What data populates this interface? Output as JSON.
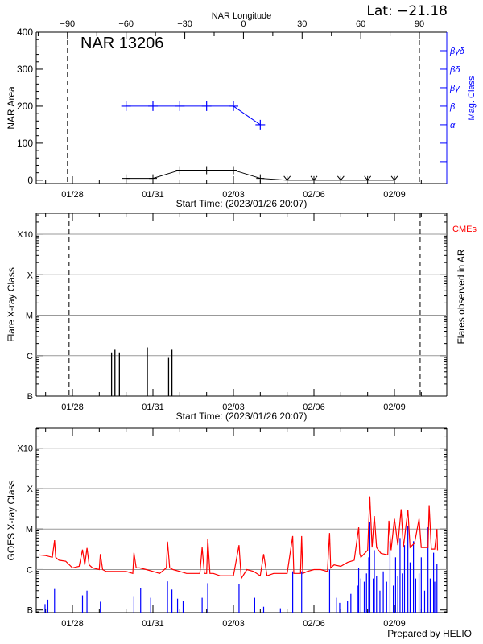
{
  "header": {
    "lat_label": "Lat: −21.18"
  },
  "footer": {
    "credit": "Prepared by HELIO"
  },
  "colors": {
    "axis": "#000000",
    "mag_class": "#0000ff",
    "goes": "#ff0000",
    "other_flares": "#0000ff",
    "cme": "#ff0000",
    "grid": "#999999"
  },
  "chart_data": [
    {
      "type": "line",
      "title": "NAR 13206",
      "xlabel": "Start Time: (2023/01/26 20:07)",
      "x_ticks": [
        "01/28",
        "01/31",
        "02/03",
        "02/06",
        "02/09"
      ],
      "xlim": [
        "01/26 15:36",
        "02/10 22:48"
      ],
      "ylabel": "NAR Area",
      "ylim": [
        -9,
        400
      ],
      "y_ticks": [
        0,
        100,
        200,
        300,
        400
      ],
      "top_axis": {
        "label": "NAR Longitude",
        "ticks": [
          -90,
          -60,
          -30,
          0,
          30,
          60,
          90
        ],
        "range": [
          -106,
          104
        ]
      },
      "limb_longitudes": [
        -90,
        90
      ],
      "right_axis": {
        "label": "Mag. Class",
        "classes": [
          {
            "label": "α",
            "value": 150
          },
          {
            "label": "β",
            "value": 200
          },
          {
            "label": "βγ",
            "value": 250
          },
          {
            "label": "βδ",
            "value": 300
          },
          {
            "label": "βγδ",
            "value": 350
          }
        ],
        "unlabeled_ticks": [
          50,
          100
        ]
      },
      "area_series": {
        "x": [
          "01/30 00:00",
          "01/31 00:00",
          "02/01 00:00",
          "02/02 00:00",
          "02/03 00:00",
          "02/04 00:00",
          "02/05 00:00",
          "02/06 00:00",
          "02/07 00:00",
          "02/08 00:00",
          "02/09 00:00"
        ],
        "y": [
          5,
          5,
          27,
          27,
          27,
          5,
          0,
          0,
          0,
          0,
          0
        ]
      },
      "mag_series": {
        "x": [
          "01/30 00:00",
          "01/31 00:00",
          "02/01 00:00",
          "02/02 00:00",
          "02/03 00:00",
          "02/04 00:00"
        ],
        "y": [
          "β",
          "β",
          "β",
          "β",
          "β",
          "α"
        ]
      }
    },
    {
      "type": "bar",
      "xlabel": "Start Time: (2023/01/26 20:07)",
      "x_ticks": [
        "01/28",
        "01/31",
        "02/03",
        "02/06",
        "02/09"
      ],
      "xlim": [
        "01/26 15:36",
        "02/10 22:48"
      ],
      "ylabel": "Flare X-ray Class",
      "y_scale": "log",
      "y_ticks": [
        "B",
        "C",
        "M",
        "X",
        "X10"
      ],
      "ylim": [
        "B1",
        "X33"
      ],
      "grid": true,
      "right_label": "Flares observed in AR",
      "cme_label": "CMEs",
      "limb_dates": [
        "01/27 21:00",
        "02/09 23:00"
      ],
      "flares": [
        {
          "time": "01/29 11:00",
          "class": "C1.2"
        },
        {
          "time": "01/29 14:00",
          "class": "C1.4"
        },
        {
          "time": "01/29 18:00",
          "class": "C1.2"
        },
        {
          "time": "01/30 19:00",
          "class": "C1.6"
        },
        {
          "time": "01/31 14:00",
          "class": "B8.8"
        },
        {
          "time": "01/31 17:00",
          "class": "C1.4"
        }
      ]
    },
    {
      "type": "line",
      "xlabel": "",
      "x_ticks": [
        "01/28",
        "01/31",
        "02/03",
        "02/06",
        "02/09"
      ],
      "xlim": [
        "01/26 15:36",
        "02/10 22:48"
      ],
      "ylabel": "GOES X-ray Class",
      "y_scale": "log",
      "y_ticks": [
        "B",
        "C",
        "M",
        "X",
        "X10"
      ],
      "ylim": [
        "B0.86",
        "X31"
      ],
      "grid": true,
      "goes_flux": [
        [
          "01/26 18:00",
          "C2.3"
        ],
        [
          "01/27 00:00",
          "C2.2"
        ],
        [
          "01/27 06:00",
          "C2.0"
        ],
        [
          "01/27 08:00",
          "C5.3"
        ],
        [
          "01/27 09:00",
          "C2.0"
        ],
        [
          "01/27 12:00",
          "C1.7"
        ],
        [
          "01/27 18:00",
          "C1.6"
        ],
        [
          "01/28 00:00",
          "C1.1"
        ],
        [
          "01/28 06:00",
          "C1.2"
        ],
        [
          "01/28 09:00",
          "C3.1"
        ],
        [
          "01/28 11:00",
          "C1.3"
        ],
        [
          "01/28 13:00",
          "C3.4"
        ],
        [
          "01/28 15:00",
          "C1.3"
        ],
        [
          "01/28 18:00",
          "C1.1"
        ],
        [
          "01/29 00:00",
          "C1.0"
        ],
        [
          "01/29 01:00",
          "C2.4"
        ],
        [
          "01/29 03:00",
          "C1.0"
        ],
        [
          "01/29 06:00",
          "C0.9"
        ],
        [
          "01/29 12:00",
          "C0.9"
        ],
        [
          "01/29 18:00",
          "C0.9"
        ],
        [
          "01/30 00:00",
          "C0.9"
        ],
        [
          "01/30 06:00",
          "C0.8"
        ],
        [
          "01/30 07:00",
          "C2.6"
        ],
        [
          "01/30 09:00",
          "C1.1"
        ],
        [
          "01/30 12:00",
          "C1.1"
        ],
        [
          "01/30 18:00",
          "C1.0"
        ],
        [
          "01/31 00:00",
          "C0.9"
        ],
        [
          "01/31 06:00",
          "C0.8"
        ],
        [
          "01/31 12:00",
          "C1.1"
        ],
        [
          "01/31 13:00",
          "C4.9"
        ],
        [
          "01/31 15:00",
          "C1.1"
        ],
        [
          "01/31 18:00",
          "C1.0"
        ],
        [
          "02/01 00:00",
          "C0.9"
        ],
        [
          "02/01 06:00",
          "C0.8"
        ],
        [
          "02/01 12:00",
          "C0.8"
        ],
        [
          "02/01 18:00",
          "C0.8"
        ],
        [
          "02/01 20:00",
          "C3.5"
        ],
        [
          "02/01 22:00",
          "C0.8"
        ],
        [
          "02/02 00:00",
          "C0.8"
        ],
        [
          "02/02 01:00",
          "C5.8"
        ],
        [
          "02/02 03:00",
          "C0.8"
        ],
        [
          "02/02 06:00",
          "C0.8"
        ],
        [
          "02/02 12:00",
          "C0.7"
        ],
        [
          "02/02 18:00",
          "C0.7"
        ],
        [
          "02/03 00:00",
          "C0.7"
        ],
        [
          "02/03 05:00",
          "C4.0"
        ],
        [
          "02/03 07:00",
          "C0.6"
        ],
        [
          "02/03 12:00",
          "C1.0"
        ],
        [
          "02/03 18:00",
          "C0.9"
        ],
        [
          "02/04 00:00",
          "C0.7"
        ],
        [
          "02/04 03:00",
          "C2.4"
        ],
        [
          "02/04 06:00",
          "C0.7"
        ],
        [
          "02/04 12:00",
          "C0.8"
        ],
        [
          "02/04 18:00",
          "C0.8"
        ],
        [
          "02/05 00:00",
          "C0.8"
        ],
        [
          "02/05 05:00",
          "C6.7"
        ],
        [
          "02/05 06:00",
          "C0.8"
        ],
        [
          "02/05 12:00",
          "C0.8"
        ],
        [
          "02/05 13:00",
          "C6.7"
        ],
        [
          "02/05 14:00",
          "C0.8"
        ],
        [
          "02/05 18:00",
          "C0.9"
        ],
        [
          "02/06 00:00",
          "C1.0"
        ],
        [
          "02/06 06:00",
          "C1.0"
        ],
        [
          "02/06 12:00",
          "C0.9"
        ],
        [
          "02/06 14:00",
          "C8.0"
        ],
        [
          "02/06 15:00",
          "C1.1"
        ],
        [
          "02/06 18:00",
          "C1.3"
        ],
        [
          "02/07 00:00",
          "C1.2"
        ],
        [
          "02/07 06:00",
          "C1.5"
        ],
        [
          "02/07 12:00",
          "C1.7"
        ],
        [
          "02/07 16:00",
          "M1.1"
        ],
        [
          "02/07 17:00",
          "C2.5"
        ],
        [
          "02/07 18:00",
          "C2.0"
        ],
        [
          "02/08 00:00",
          "C3.0"
        ],
        [
          "02/08 02:00",
          "M6.4"
        ],
        [
          "02/08 04:00",
          "C3.5"
        ],
        [
          "02/08 06:00",
          "M2.1"
        ],
        [
          "02/08 08:00",
          "C3.5"
        ],
        [
          "02/08 12:00",
          "C2.5"
        ],
        [
          "02/08 18:00",
          "C2.3"
        ],
        [
          "02/08 19:00",
          "M1.6"
        ],
        [
          "02/08 21:00",
          "C3.0"
        ],
        [
          "02/09 00:00",
          "M1.8"
        ],
        [
          "02/09 03:00",
          "C4.0"
        ],
        [
          "02/09 06:00",
          "M3.1"
        ],
        [
          "02/09 08:00",
          "C3.5"
        ],
        [
          "02/09 12:00",
          "M3.0"
        ],
        [
          "02/09 14:00",
          "C3.5"
        ],
        [
          "02/09 18:00",
          "C4.5"
        ],
        [
          "02/09 22:00",
          "M1.8"
        ],
        [
          "02/10 00:00",
          "C3.5"
        ],
        [
          "02/10 06:00",
          "C3.5"
        ],
        [
          "02/10 07:00",
          "M3.9"
        ],
        [
          "02/10 09:00",
          "C3.2"
        ],
        [
          "02/10 12:00",
          "C3.2"
        ],
        [
          "02/10 14:00",
          "M1.0"
        ],
        [
          "02/10 14:30",
          "C3.0"
        ]
      ],
      "other_flares": [
        [
          "01/26 23:30",
          "B1.4"
        ],
        [
          "01/27 02:00",
          "B1.8"
        ],
        [
          "01/27 08:00",
          "B3.3"
        ],
        [
          "01/28 09:00",
          "B2.3"
        ],
        [
          "01/28 13:00",
          "B3.0"
        ],
        [
          "01/29 01:00",
          "B1.6"
        ],
        [
          "01/30 07:00",
          "B2.2"
        ],
        [
          "01/30 13:00",
          "B3.4"
        ],
        [
          "01/30 22:00",
          "B2.0"
        ],
        [
          "01/31 13:00",
          "B5.1"
        ],
        [
          "01/31 17:00",
          "B3.2"
        ],
        [
          "01/31 22:00",
          "B1.9"
        ],
        [
          "02/01 03:00",
          "B1.7"
        ],
        [
          "02/01 20:00",
          "B2.0"
        ],
        [
          "02/02 01:00",
          "B4.6"
        ],
        [
          "02/03 05:00",
          "B4.4"
        ],
        [
          "02/03 19:00",
          "B2.0"
        ],
        [
          "02/04 03:00",
          "B1.2"
        ],
        [
          "02/04 18:00",
          "B1.1"
        ],
        [
          "02/05 05:00",
          "B9.0"
        ],
        [
          "02/05 13:00",
          "B9.0"
        ],
        [
          "02/06 14:00",
          "C1.0"
        ],
        [
          "02/06 20:00",
          "B2.0"
        ],
        [
          "02/06 23:00",
          "B1.5"
        ],
        [
          "02/07 06:00",
          "B1.7"
        ],
        [
          "02/07 09:00",
          "B2.5"
        ],
        [
          "02/07 15:00",
          "B4.0"
        ],
        [
          "02/07 16:00",
          "C1.1"
        ],
        [
          "02/07 18:00",
          "B6.0"
        ],
        [
          "02/07 21:00",
          "B5.0"
        ],
        [
          "02/07 23:00",
          "B8.0"
        ],
        [
          "02/08 01:00",
          "C2.0"
        ],
        [
          "02/08 02:00",
          "M1.5"
        ],
        [
          "02/08 05:00",
          "B6.0"
        ],
        [
          "02/08 06:00",
          "C3.0"
        ],
        [
          "02/08 08:00",
          "B7.0"
        ],
        [
          "02/08 11:00",
          "B3.0"
        ],
        [
          "02/08 14:00",
          "B9.0"
        ],
        [
          "02/08 17:00",
          "B5.0"
        ],
        [
          "02/08 20:00",
          "C5.0"
        ],
        [
          "02/08 23:00",
          "B4.0"
        ],
        [
          "02/09 01:00",
          "C2.0"
        ],
        [
          "02/09 03:00",
          "B7.0"
        ],
        [
          "02/09 05:00",
          "C6.0"
        ],
        [
          "02/09 07:00",
          "B8.0"
        ],
        [
          "02/09 09:00",
          "C4.0"
        ],
        [
          "02/09 12:00",
          "M1.2"
        ],
        [
          "02/09 14:00",
          "C1.5"
        ],
        [
          "02/09 17:00",
          "C5.0"
        ],
        [
          "02/09 19:00",
          "B6.0"
        ],
        [
          "02/09 22:00",
          "B8.0"
        ],
        [
          "02/10 00:00",
          "C2.0"
        ],
        [
          "02/10 03:00",
          "B3.0"
        ],
        [
          "02/10 06:00",
          "M1.1"
        ],
        [
          "02/10 08:00",
          "B6.0"
        ],
        [
          "02/10 11:00",
          "C2.6"
        ],
        [
          "02/10 12:00",
          "B5.0"
        ],
        [
          "02/10 14:00",
          "C1.4"
        ]
      ]
    }
  ]
}
